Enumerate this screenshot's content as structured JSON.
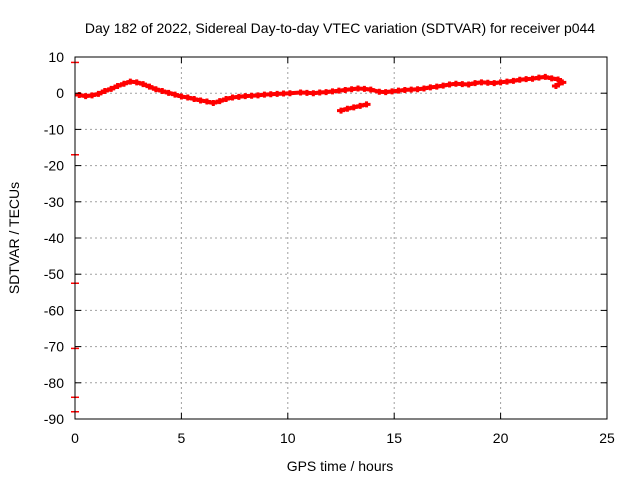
{
  "chart_data": {
    "type": "scatter",
    "title": "Day 182 of 2022, Sidereal Day-to-day VTEC variation (SDTVAR) for receiver p044",
    "xlabel": "GPS time / hours",
    "ylabel": "SDTVAR / TECUs",
    "xlim": [
      0,
      25
    ],
    "ylim": [
      -90,
      10
    ],
    "xticks": [
      0,
      5,
      10,
      15,
      20,
      25
    ],
    "yticks": [
      10,
      0,
      -10,
      -20,
      -30,
      -40,
      -50,
      -60,
      -70,
      -80,
      -90
    ],
    "grid": true,
    "marker_color": "#ff0000",
    "series": [
      {
        "name": "main trace",
        "points": [
          [
            0.2,
            -0.5
          ],
          [
            0.5,
            -0.8
          ],
          [
            0.8,
            -0.6
          ],
          [
            1.1,
            -0.2
          ],
          [
            1.4,
            0.6
          ],
          [
            1.7,
            1.2
          ],
          [
            2.0,
            2.0
          ],
          [
            2.3,
            2.6
          ],
          [
            2.6,
            3.2
          ],
          [
            2.9,
            3.0
          ],
          [
            3.2,
            2.5
          ],
          [
            3.5,
            1.8
          ],
          [
            3.8,
            1.1
          ],
          [
            4.1,
            0.6
          ],
          [
            4.4,
            0.1
          ],
          [
            4.7,
            -0.4
          ],
          [
            5.0,
            -0.9
          ],
          [
            5.3,
            -1.2
          ],
          [
            5.6,
            -1.6
          ],
          [
            5.9,
            -2.0
          ],
          [
            6.2,
            -2.3
          ],
          [
            6.5,
            -2.7
          ],
          [
            6.8,
            -2.2
          ],
          [
            7.1,
            -1.6
          ],
          [
            7.4,
            -1.2
          ],
          [
            7.7,
            -1.0
          ],
          [
            8.0,
            -0.8
          ],
          [
            8.3,
            -0.7
          ],
          [
            8.6,
            -0.6
          ],
          [
            8.9,
            -0.4
          ],
          [
            9.2,
            -0.3
          ],
          [
            9.5,
            -0.2
          ],
          [
            9.8,
            -0.1
          ],
          [
            10.1,
            0.0
          ],
          [
            10.6,
            0.2
          ],
          [
            10.9,
            0.1
          ],
          [
            11.2,
            0.0
          ],
          [
            11.5,
            0.2
          ],
          [
            11.8,
            0.3
          ],
          [
            12.1,
            0.5
          ],
          [
            12.4,
            0.7
          ],
          [
            12.7,
            0.9
          ],
          [
            13.0,
            1.1
          ],
          [
            13.3,
            1.3
          ],
          [
            13.6,
            1.2
          ],
          [
            13.9,
            1.0
          ],
          [
            14.3,
            0.4
          ],
          [
            14.6,
            0.3
          ],
          [
            14.9,
            0.5
          ],
          [
            15.2,
            0.7
          ],
          [
            15.5,
            0.9
          ],
          [
            15.8,
            1.0
          ],
          [
            16.1,
            1.1
          ],
          [
            16.4,
            1.3
          ],
          [
            16.7,
            1.6
          ],
          [
            17.0,
            1.8
          ],
          [
            17.3,
            2.1
          ],
          [
            17.6,
            2.4
          ],
          [
            17.9,
            2.6
          ],
          [
            18.2,
            2.5
          ],
          [
            18.5,
            2.4
          ],
          [
            18.8,
            2.8
          ],
          [
            19.1,
            3.0
          ],
          [
            19.4,
            2.9
          ],
          [
            19.7,
            2.8
          ],
          [
            20.0,
            3.0
          ],
          [
            20.3,
            3.2
          ],
          [
            20.6,
            3.4
          ],
          [
            20.9,
            3.7
          ],
          [
            21.2,
            3.9
          ],
          [
            21.5,
            4.0
          ],
          [
            21.8,
            4.3
          ],
          [
            22.1,
            4.5
          ],
          [
            22.4,
            4.1
          ],
          [
            22.7,
            3.8
          ],
          [
            22.9,
            3.0
          ],
          [
            22.6,
            2.0
          ]
        ]
      },
      {
        "name": "secondary trace",
        "points": [
          [
            12.5,
            -4.8
          ],
          [
            12.8,
            -4.3
          ],
          [
            13.1,
            -3.9
          ],
          [
            13.4,
            -3.5
          ],
          [
            13.7,
            -3.1
          ]
        ]
      },
      {
        "name": "outliers",
        "points": [
          [
            0.0,
            8.5
          ],
          [
            0.0,
            -17.0
          ],
          [
            0.0,
            -52.5
          ],
          [
            0.0,
            -70.5
          ],
          [
            0.0,
            -84.0
          ],
          [
            0.0,
            -88.0
          ]
        ]
      }
    ]
  }
}
